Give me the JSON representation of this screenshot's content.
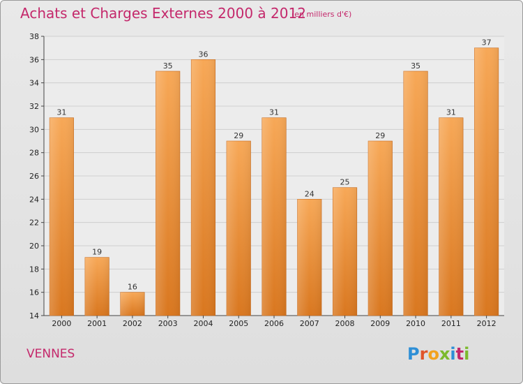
{
  "header": {
    "title": "Achats et Charges Externes 2000 à 2012",
    "subtitle": "(en milliers d'€)"
  },
  "footer": {
    "commune": "VENNES",
    "logo_text": "Proxiti"
  },
  "colors": {
    "title": "#c4286b",
    "bar_top": "#f7a857",
    "bar_bottom": "#d9771f",
    "bar_edge": "#c8691a"
  },
  "chart_data": {
    "type": "bar",
    "title": "Achats et Charges Externes 2000 à 2012",
    "subtitle": "(en milliers d'€)",
    "categories": [
      "2000",
      "2001",
      "2002",
      "2003",
      "2004",
      "2005",
      "2006",
      "2007",
      "2008",
      "2009",
      "2010",
      "2011",
      "2012"
    ],
    "values": [
      31,
      19,
      16,
      35,
      36,
      29,
      31,
      24,
      25,
      29,
      35,
      31,
      37
    ],
    "ylim": [
      14,
      38
    ],
    "yticks": [
      14,
      16,
      18,
      20,
      22,
      24,
      26,
      28,
      30,
      32,
      34,
      36,
      38
    ],
    "grid": true,
    "xlabel": "",
    "ylabel": ""
  }
}
